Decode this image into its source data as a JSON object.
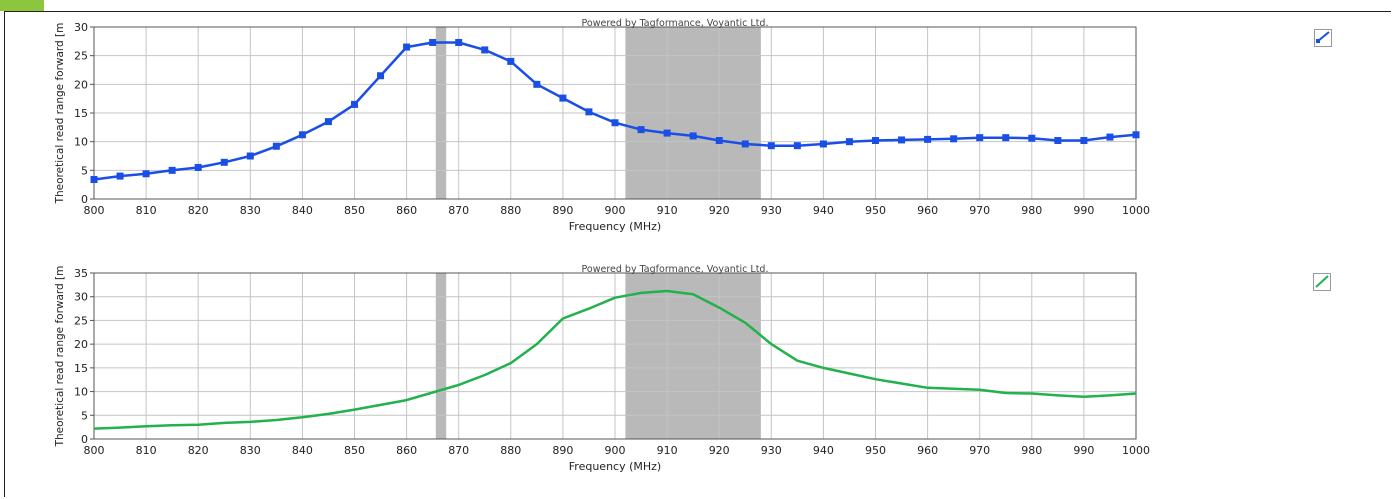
{
  "watermark": "Powered by Tagformance, Voyantic Ltd.",
  "chart_data": [
    {
      "type": "line",
      "xlabel": "Frequency (MHz)",
      "ylabel": "Theoretical read range forward [m",
      "xlim": [
        800,
        1000
      ],
      "ylim": [
        0,
        30
      ],
      "xticks": [
        800,
        810,
        820,
        830,
        840,
        850,
        860,
        870,
        880,
        890,
        900,
        910,
        920,
        930,
        940,
        950,
        960,
        970,
        980,
        990,
        1000
      ],
      "yticks": [
        0,
        5,
        10,
        15,
        20,
        25,
        30
      ],
      "grid": true,
      "shaded_bands": [
        [
          865.6,
          867.6
        ],
        [
          902,
          928
        ]
      ],
      "markers": true,
      "color": "#1a4fe6",
      "x": [
        800,
        805,
        810,
        815,
        820,
        825,
        830,
        835,
        840,
        845,
        850,
        855,
        860,
        865,
        870,
        875,
        880,
        885,
        890,
        895,
        900,
        905,
        910,
        915,
        920,
        925,
        930,
        935,
        940,
        945,
        950,
        955,
        960,
        965,
        970,
        975,
        980,
        985,
        990,
        995,
        1000
      ],
      "values": [
        3.4,
        4.0,
        4.4,
        5.0,
        5.5,
        6.4,
        7.5,
        9.2,
        11.2,
        13.5,
        16.5,
        21.5,
        26.5,
        27.3,
        27.3,
        26.0,
        24.0,
        20.0,
        17.6,
        15.2,
        13.3,
        12.1,
        11.5,
        11.0,
        10.2,
        9.6,
        9.3,
        9.3,
        9.6,
        10.0,
        10.2,
        10.3,
        10.4,
        10.5,
        10.7,
        10.7,
        10.6,
        10.2,
        10.2,
        10.8,
        11.2
      ]
    },
    {
      "type": "line",
      "xlabel": "Frequency (MHz)",
      "ylabel": "Theoretical read range forward [m",
      "xlim": [
        800,
        1000
      ],
      "ylim": [
        0,
        35
      ],
      "xticks": [
        800,
        810,
        820,
        830,
        840,
        850,
        860,
        870,
        880,
        890,
        900,
        910,
        920,
        930,
        940,
        950,
        960,
        970,
        980,
        990,
        1000
      ],
      "yticks": [
        0,
        5,
        10,
        15,
        20,
        25,
        30,
        35
      ],
      "grid": true,
      "shaded_bands": [
        [
          865.6,
          867.6
        ],
        [
          902,
          928
        ]
      ],
      "markers": false,
      "color": "#22b14c",
      "x": [
        800,
        805,
        810,
        815,
        820,
        825,
        830,
        835,
        840,
        845,
        850,
        855,
        860,
        865,
        870,
        875,
        880,
        885,
        890,
        895,
        900,
        905,
        910,
        915,
        920,
        925,
        930,
        935,
        940,
        945,
        950,
        955,
        960,
        965,
        970,
        975,
        980,
        985,
        990,
        995,
        1000
      ],
      "values": [
        2.2,
        2.4,
        2.7,
        2.9,
        3.0,
        3.4,
        3.6,
        4.0,
        4.6,
        5.3,
        6.2,
        7.2,
        8.2,
        9.8,
        11.4,
        13.5,
        16.0,
        20.0,
        25.4,
        27.5,
        29.8,
        30.8,
        31.2,
        30.5,
        27.7,
        24.5,
        20.0,
        16.5,
        15.0,
        13.8,
        12.6,
        11.7,
        10.8,
        10.6,
        10.4,
        9.7,
        9.6,
        9.2,
        8.9,
        9.2,
        9.6
      ]
    }
  ]
}
